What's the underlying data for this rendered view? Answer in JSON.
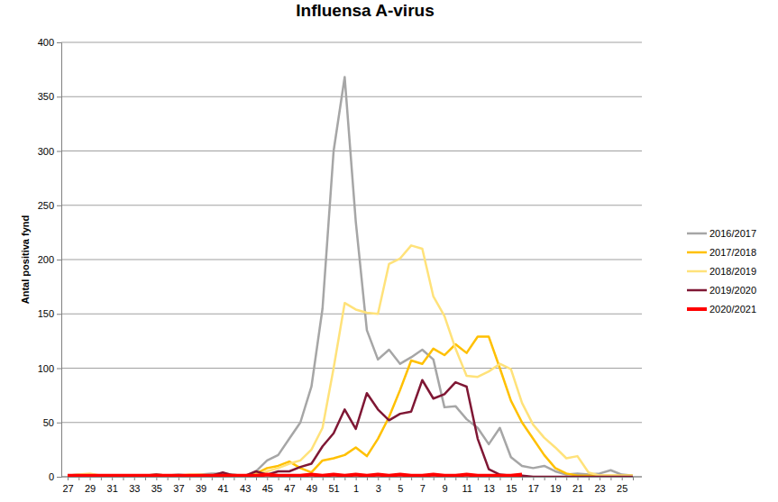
{
  "chart_data": {
    "type": "line",
    "title": "Influensa A-virus",
    "y_label": "Antal positiva fynd",
    "categories": [
      "27",
      null,
      "29",
      null,
      "31",
      null,
      "33",
      null,
      "35",
      null,
      "37",
      null,
      "39",
      null,
      "41",
      null,
      "43",
      null,
      "45",
      null,
      "47",
      null,
      "49",
      null,
      "51",
      null,
      "1",
      null,
      "3",
      null,
      "5",
      null,
      "7",
      null,
      "9",
      null,
      "11",
      null,
      "13",
      null,
      "15",
      null,
      "17",
      null,
      "19",
      null,
      "21",
      null,
      "23",
      null,
      "25",
      null
    ],
    "series": [
      {
        "name": "2016/2017",
        "color": "#a6a6a6",
        "values": [
          1,
          2,
          1,
          1,
          1,
          1,
          1,
          1,
          1,
          1,
          2,
          1,
          2,
          3,
          3,
          2,
          0,
          5,
          15,
          20,
          35,
          50,
          83,
          155,
          300,
          368,
          235,
          135,
          108,
          117,
          104,
          110,
          117,
          108,
          64,
          65,
          53,
          45,
          30,
          45,
          18,
          10,
          8,
          10,
          5,
          2,
          3,
          2,
          3,
          6,
          2,
          1
        ]
      },
      {
        "name": "2017/2018",
        "color": "#ffc000",
        "values": [
          1,
          1,
          2,
          1,
          1,
          1,
          1,
          1,
          1,
          1,
          1,
          1,
          1,
          1,
          1,
          1,
          1,
          3,
          8,
          10,
          14,
          8,
          4,
          15,
          17,
          20,
          27,
          19,
          35,
          55,
          80,
          107,
          104,
          118,
          112,
          122,
          114,
          129,
          129,
          100,
          70,
          50,
          35,
          20,
          8,
          3,
          1,
          1,
          1,
          1,
          1,
          1
        ]
      },
      {
        "name": "2018/2019",
        "color": "#ffe27a",
        "values": [
          1,
          2,
          3,
          1,
          1,
          1,
          1,
          1,
          2,
          1,
          1,
          2,
          2,
          1,
          1,
          1,
          1,
          2,
          5,
          8,
          12,
          15,
          25,
          45,
          100,
          160,
          154,
          151,
          150,
          196,
          201,
          213,
          210,
          166,
          148,
          118,
          93,
          92,
          97,
          104,
          99,
          68,
          48,
          36,
          27,
          17,
          19,
          4,
          1,
          1,
          1,
          1
        ]
      },
      {
        "name": "2019/2020",
        "color": "#7f1734",
        "values": [
          1,
          1,
          1,
          1,
          1,
          1,
          1,
          1,
          2,
          1,
          1,
          1,
          1,
          1,
          4,
          1,
          1,
          5,
          2,
          5,
          5,
          9,
          12,
          28,
          40,
          62,
          44,
          77,
          62,
          52,
          58,
          60,
          89,
          72,
          76,
          87,
          83,
          35,
          7,
          2,
          1,
          1,
          0,
          0,
          0,
          0,
          0,
          0,
          0,
          0,
          0,
          0
        ]
      },
      {
        "name": "2020/2021",
        "color": "#ff0000",
        "values": [
          1,
          1,
          1,
          1,
          1,
          1,
          1,
          1,
          1,
          1,
          1,
          1,
          1,
          1,
          1,
          1,
          1,
          1,
          2,
          1,
          1,
          1,
          2,
          1,
          2,
          1,
          2,
          1,
          2,
          1,
          2,
          1,
          1,
          2,
          1,
          1,
          2,
          1,
          1,
          1,
          1,
          2,
          null,
          null,
          null,
          null,
          null,
          null,
          null,
          null,
          null,
          null
        ]
      }
    ],
    "ylim": [
      0,
      400
    ],
    "yticks": [
      0,
      50,
      100,
      150,
      200,
      250,
      300,
      350,
      400
    ],
    "grid": true,
    "legend": "right"
  }
}
